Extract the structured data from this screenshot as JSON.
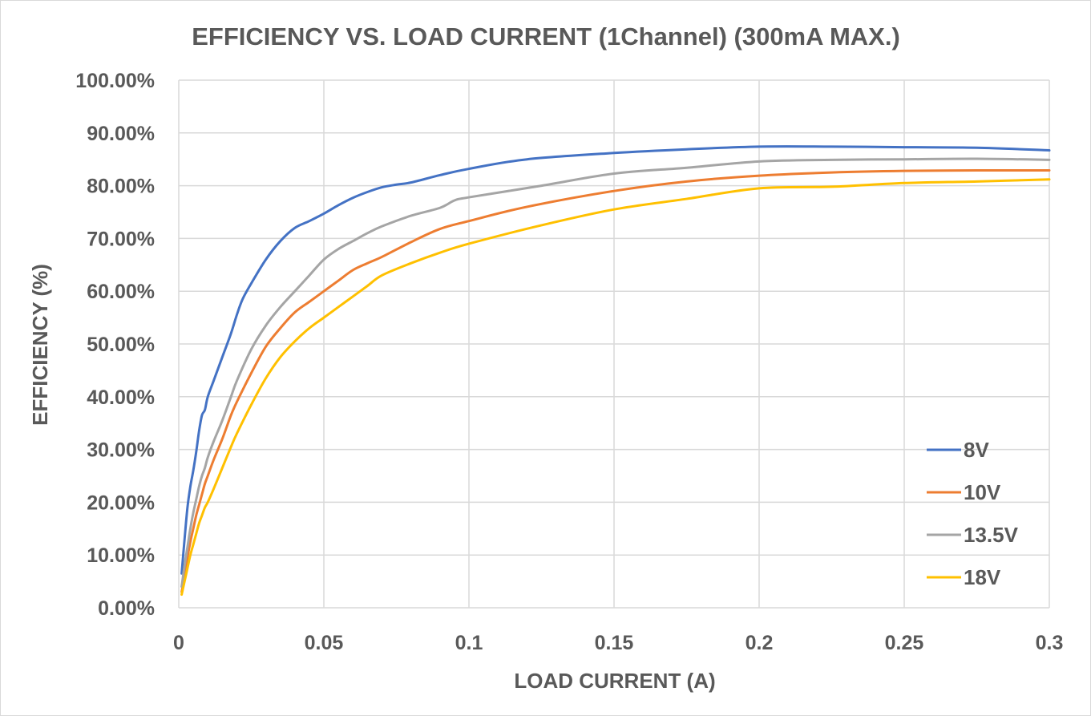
{
  "chart_data": {
    "type": "line",
    "title": "EFFICIENCY VS. LOAD CURRENT (1Channel) (300mA MAX.)",
    "xlabel": "LOAD CURRENT (A)",
    "ylabel": "EFFICIENCY (%)",
    "xlim": [
      0,
      0.3
    ],
    "ylim": [
      0,
      100
    ],
    "x_ticks": [
      "0",
      "0.05",
      "0.1",
      "0.15",
      "0.2",
      "0.25",
      "0.3"
    ],
    "y_ticks": [
      "0.00%",
      "10.00%",
      "20.00%",
      "30.00%",
      "40.00%",
      "50.00%",
      "60.00%",
      "70.00%",
      "80.00%",
      "90.00%",
      "100.00%"
    ],
    "grid": true,
    "legend_position": "right",
    "series": [
      {
        "name": "8V",
        "color": "#4472C4",
        "points": [
          [
            0.001,
            6.5
          ],
          [
            0.002,
            13
          ],
          [
            0.003,
            19
          ],
          [
            0.004,
            23
          ],
          [
            0.005,
            26
          ],
          [
            0.006,
            29.5
          ],
          [
            0.007,
            33.5
          ],
          [
            0.008,
            36.5
          ],
          [
            0.009,
            37.5
          ],
          [
            0.01,
            40
          ],
          [
            0.012,
            43
          ],
          [
            0.015,
            47.5
          ],
          [
            0.018,
            52
          ],
          [
            0.02,
            55.5
          ],
          [
            0.022,
            58.5
          ],
          [
            0.025,
            61.5
          ],
          [
            0.03,
            66
          ],
          [
            0.035,
            69.5
          ],
          [
            0.04,
            72
          ],
          [
            0.045,
            73.3
          ],
          [
            0.05,
            74.7
          ],
          [
            0.055,
            76.3
          ],
          [
            0.06,
            77.7
          ],
          [
            0.065,
            78.8
          ],
          [
            0.07,
            79.7
          ],
          [
            0.075,
            80.2
          ],
          [
            0.08,
            80.6
          ],
          [
            0.09,
            82
          ],
          [
            0.1,
            83.2
          ],
          [
            0.12,
            85
          ],
          [
            0.15,
            86.2
          ],
          [
            0.175,
            86.9
          ],
          [
            0.2,
            87.4
          ],
          [
            0.225,
            87.4
          ],
          [
            0.25,
            87.3
          ],
          [
            0.275,
            87.2
          ],
          [
            0.3,
            86.7
          ]
        ]
      },
      {
        "name": "10V",
        "color": "#ED7D31",
        "points": [
          [
            0.001,
            3
          ],
          [
            0.002,
            6
          ],
          [
            0.003,
            9.5
          ],
          [
            0.004,
            12.5
          ],
          [
            0.005,
            15
          ],
          [
            0.006,
            17.5
          ],
          [
            0.007,
            19.5
          ],
          [
            0.008,
            21.5
          ],
          [
            0.009,
            23.5
          ],
          [
            0.01,
            25
          ],
          [
            0.012,
            28
          ],
          [
            0.015,
            32
          ],
          [
            0.018,
            36.5
          ],
          [
            0.02,
            39
          ],
          [
            0.025,
            44.5
          ],
          [
            0.03,
            49.5
          ],
          [
            0.035,
            53
          ],
          [
            0.04,
            56
          ],
          [
            0.045,
            58
          ],
          [
            0.05,
            60
          ],
          [
            0.055,
            62
          ],
          [
            0.06,
            64
          ],
          [
            0.065,
            65.3
          ],
          [
            0.07,
            66.5
          ],
          [
            0.08,
            69.3
          ],
          [
            0.09,
            71.8
          ],
          [
            0.1,
            73.3
          ],
          [
            0.12,
            76
          ],
          [
            0.15,
            79
          ],
          [
            0.175,
            80.8
          ],
          [
            0.2,
            81.9
          ],
          [
            0.225,
            82.5
          ],
          [
            0.25,
            82.8
          ],
          [
            0.275,
            82.9
          ],
          [
            0.3,
            82.9
          ]
        ]
      },
      {
        "name": "13.5V",
        "color": "#A5A5A5",
        "points": [
          [
            0.001,
            4
          ],
          [
            0.002,
            8
          ],
          [
            0.003,
            11.5
          ],
          [
            0.004,
            15
          ],
          [
            0.005,
            18
          ],
          [
            0.006,
            20.5
          ],
          [
            0.007,
            23
          ],
          [
            0.008,
            25
          ],
          [
            0.009,
            26.5
          ],
          [
            0.01,
            28.5
          ],
          [
            0.012,
            31.5
          ],
          [
            0.015,
            35.5
          ],
          [
            0.018,
            40
          ],
          [
            0.02,
            43
          ],
          [
            0.025,
            49
          ],
          [
            0.03,
            53.5
          ],
          [
            0.035,
            57
          ],
          [
            0.04,
            60
          ],
          [
            0.045,
            63
          ],
          [
            0.05,
            66
          ],
          [
            0.055,
            68
          ],
          [
            0.06,
            69.5
          ],
          [
            0.065,
            71
          ],
          [
            0.07,
            72.3
          ],
          [
            0.08,
            74.3
          ],
          [
            0.09,
            75.8
          ],
          [
            0.095,
            77.2
          ],
          [
            0.1,
            77.8
          ],
          [
            0.125,
            80
          ],
          [
            0.15,
            82.3
          ],
          [
            0.175,
            83.4
          ],
          [
            0.2,
            84.6
          ],
          [
            0.225,
            84.9
          ],
          [
            0.25,
            85
          ],
          [
            0.275,
            85.1
          ],
          [
            0.3,
            84.9
          ]
        ]
      },
      {
        "name": "18V",
        "color": "#FFC000",
        "points": [
          [
            0.001,
            2.5
          ],
          [
            0.002,
            5
          ],
          [
            0.003,
            7.5
          ],
          [
            0.004,
            10
          ],
          [
            0.005,
            12
          ],
          [
            0.006,
            14
          ],
          [
            0.007,
            16
          ],
          [
            0.008,
            17.5
          ],
          [
            0.009,
            19
          ],
          [
            0.01,
            20
          ],
          [
            0.012,
            22.5
          ],
          [
            0.015,
            26.5
          ],
          [
            0.018,
            30.5
          ],
          [
            0.02,
            33
          ],
          [
            0.025,
            38.5
          ],
          [
            0.03,
            43.5
          ],
          [
            0.035,
            47.5
          ],
          [
            0.04,
            50.5
          ],
          [
            0.045,
            53
          ],
          [
            0.05,
            55
          ],
          [
            0.055,
            57
          ],
          [
            0.06,
            59
          ],
          [
            0.065,
            61
          ],
          [
            0.07,
            63
          ],
          [
            0.08,
            65.3
          ],
          [
            0.09,
            67.3
          ],
          [
            0.1,
            69
          ],
          [
            0.125,
            72.5
          ],
          [
            0.15,
            75.5
          ],
          [
            0.175,
            77.5
          ],
          [
            0.2,
            79.5
          ],
          [
            0.225,
            79.8
          ],
          [
            0.25,
            80.5
          ],
          [
            0.275,
            80.8
          ],
          [
            0.3,
            81.2
          ]
        ]
      }
    ]
  }
}
